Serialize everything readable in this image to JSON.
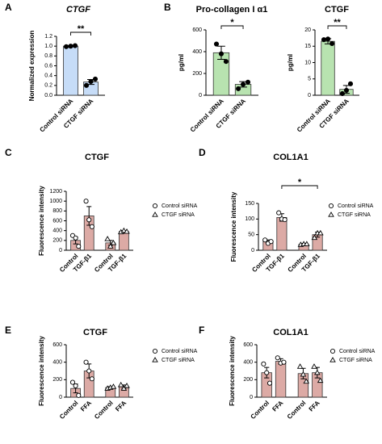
{
  "chart_data": [
    {
      "type": "bar",
      "panel": "A",
      "title": "CTGF",
      "ylabel": "Normalized expression",
      "categories": [
        "Control siRNA",
        "CTGF siRNA"
      ],
      "values": [
        1.0,
        0.27
      ],
      "errors": [
        0.01,
        0.05
      ],
      "points": [
        [
          0.99,
          1.0,
          1.01
        ],
        [
          0.2,
          0.28,
          0.33
        ]
      ],
      "marker": "dot",
      "color": "#c6dcf7",
      "ylim": [
        0,
        1.2
      ],
      "yticks": [
        {
          "value": 0,
          "label": "0.0"
        },
        {
          "value": 0.2,
          "label": "0.2"
        },
        {
          "value": 0.4,
          "label": "0.4"
        },
        {
          "value": 0.6,
          "label": "0.6"
        },
        {
          "value": 0.8,
          "label": "0.8"
        },
        {
          "value": 1.0,
          "label": "1.0"
        },
        {
          "value": 1.2,
          "label": "1.2"
        }
      ],
      "significance": "**"
    },
    {
      "type": "bar",
      "panel": "B",
      "title": "Pro-collagen I α1",
      "ylabel": "pg/ml",
      "categories": [
        "Control siRNA",
        "CTGF siRNA"
      ],
      "values": [
        390,
        100
      ],
      "errors": [
        60,
        25
      ],
      "points": [
        [
          470,
          380,
          310
        ],
        [
          60,
          100,
          120
        ]
      ],
      "marker": "dot",
      "color": "#b8e3b0",
      "ylim": [
        0,
        600
      ],
      "yticks": [
        0,
        200,
        400,
        600
      ],
      "significance": "*"
    },
    {
      "type": "bar",
      "title": "CTGF",
      "ylabel": "pg/ml",
      "categories": [
        "Control siRNA",
        "CTGF siRNA"
      ],
      "values": [
        16.5,
        1.8
      ],
      "errors": [
        0.8,
        1.2
      ],
      "points": [
        [
          17.0,
          17.2,
          15.8
        ],
        [
          0.5,
          1.5,
          3.5
        ]
      ],
      "marker": "dot",
      "color": "#b8e3b0",
      "ylim": [
        0,
        20
      ],
      "yticks": [
        0,
        5,
        10,
        15,
        20
      ],
      "significance": "**"
    },
    {
      "type": "grouped-bar",
      "panel": "C",
      "title": "CTGF",
      "ylabel": "Fluorescence intensity",
      "categories": [
        "Control",
        "TGF-β1"
      ],
      "color": "#dcaaa5",
      "ylim": [
        0,
        1200
      ],
      "yticks": [
        0,
        200,
        400,
        600,
        800,
        1000,
        1200
      ],
      "series": [
        {
          "name": "Control siRNA",
          "marker": "circle",
          "values": [
            200,
            700
          ],
          "errors": [
            70,
            190
          ],
          "points": [
            [
              300,
              250,
              80
            ],
            [
              1000,
              620,
              480
            ]
          ]
        },
        {
          "name": "CTGF siRNA",
          "marker": "triangle",
          "values": [
            150,
            380
          ],
          "errors": [
            50,
            20
          ],
          "points": [
            [
              230,
              80,
              150
            ],
            [
              370,
              400,
              380
            ]
          ]
        }
      ]
    },
    {
      "type": "grouped-bar",
      "panel": "D",
      "title": "COL1A1",
      "ylabel": "Fluorescence intensity",
      "categories": [
        "Control",
        "TGF-β1"
      ],
      "color": "#dcaaa5",
      "ylim": [
        0,
        150
      ],
      "yticks": [
        0,
        50,
        100,
        150
      ],
      "significance": "*",
      "series": [
        {
          "name": "Control siRNA",
          "marker": "circle",
          "values": [
            28,
            105
          ],
          "errors": [
            5,
            12
          ],
          "points": [
            [
              33,
              22,
              28
            ],
            [
              120,
              100,
              98
            ]
          ]
        },
        {
          "name": "CTGF siRNA",
          "marker": "triangle",
          "values": [
            19,
            50
          ],
          "errors": [
            3,
            8
          ],
          "points": [
            [
              18,
              20,
              20
            ],
            [
              40,
              55,
              55
            ]
          ]
        }
      ]
    },
    {
      "type": "grouped-bar",
      "panel": "E",
      "title": "CTGF",
      "ylabel": "Fluorescence intensity",
      "categories": [
        "Control",
        "FFA"
      ],
      "color": "#dcaaa5",
      "ylim": [
        0,
        600
      ],
      "yticks": [
        0,
        200,
        400,
        600
      ],
      "series": [
        {
          "name": "Control siRNA",
          "marker": "circle",
          "values": [
            100,
            300
          ],
          "errors": [
            50,
            80
          ],
          "points": [
            [
              170,
              130,
              20
            ],
            [
              400,
              300,
              210
            ]
          ]
        },
        {
          "name": "CTGF siRNA",
          "marker": "triangle",
          "values": [
            110,
            120
          ],
          "errors": [
            10,
            20
          ],
          "points": [
            [
              100,
              110,
              120
            ],
            [
              140,
              100,
              130
            ]
          ]
        }
      ]
    },
    {
      "type": "grouped-bar",
      "panel": "F",
      "title": "COL1A1",
      "ylabel": "Fluorescence intensity",
      "categories": [
        "Control",
        "FFA"
      ],
      "color": "#dcaaa5",
      "ylim": [
        0,
        600
      ],
      "yticks": [
        0,
        200,
        400,
        600
      ],
      "series": [
        {
          "name": "Control siRNA",
          "marker": "circle",
          "values": [
            280,
            410
          ],
          "errors": [
            60,
            30
          ],
          "points": [
            [
              380,
              280,
              160
            ],
            [
              450,
              390,
              400
            ]
          ]
        },
        {
          "name": "CTGF siRNA",
          "marker": "triangle",
          "values": [
            270,
            280
          ],
          "errors": [
            60,
            60
          ],
          "points": [
            [
              350,
              260,
              180
            ],
            [
              350,
              280,
              190
            ]
          ]
        }
      ]
    }
  ]
}
